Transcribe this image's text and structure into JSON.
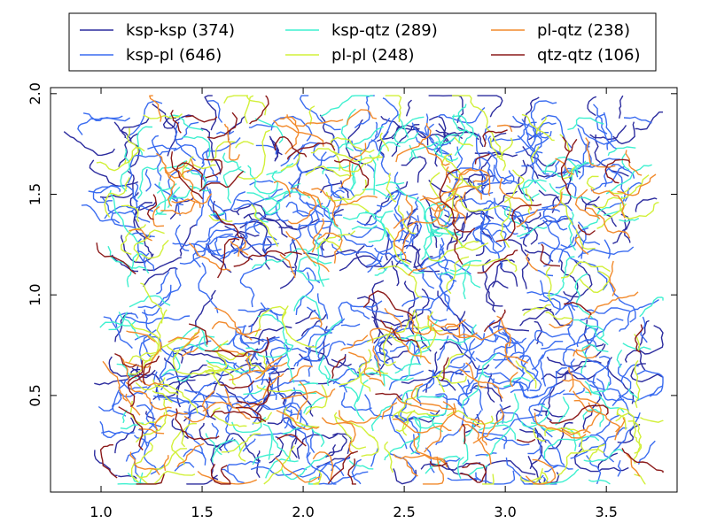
{
  "chart_data": {
    "type": "line",
    "title": "",
    "xlabel": "",
    "ylabel": "",
    "xlim": [
      0.75,
      3.85
    ],
    "ylim": [
      0.02,
      2.03
    ],
    "x_ticks": [
      {
        "value": 1.0,
        "label": "1.0"
      },
      {
        "value": 1.5,
        "label": "1.5"
      },
      {
        "value": 2.0,
        "label": "2.0"
      },
      {
        "value": 2.5,
        "label": "2.5"
      },
      {
        "value": 3.0,
        "label": "3.0"
      },
      {
        "value": 3.5,
        "label": "3.5"
      }
    ],
    "y_ticks": [
      {
        "value": 0.5,
        "label": "0.5"
      },
      {
        "value": 1.0,
        "label": "1.0"
      },
      {
        "value": 1.5,
        "label": "1.5"
      },
      {
        "value": 2.0,
        "label": "2.0"
      }
    ],
    "grid": false,
    "legend_position": "top-center, outside plot, 3 columns",
    "series": [
      {
        "name": "ksp-ksp (374)",
        "color": "#2c2c9e",
        "segment_count": 374
      },
      {
        "name": "ksp-pl (646)",
        "color": "#3a6cf0",
        "segment_count": 646
      },
      {
        "name": "ksp-qtz (289)",
        "color": "#3ff0d0",
        "segment_count": 289
      },
      {
        "name": "pl-pl (248)",
        "color": "#d2f03a",
        "segment_count": 248
      },
      {
        "name": "pl-qtz (238)",
        "color": "#f28a2c",
        "segment_count": 238
      },
      {
        "name": "qtz-qtz (106)",
        "color": "#8b1a1a",
        "segment_count": 106
      }
    ],
    "regions": [
      {
        "x": [
          1.05,
          3.65
        ],
        "y": [
          1.1,
          1.9
        ]
      },
      {
        "x": [
          1.05,
          3.7
        ],
        "y": [
          0.08,
          0.95
        ]
      }
    ]
  }
}
